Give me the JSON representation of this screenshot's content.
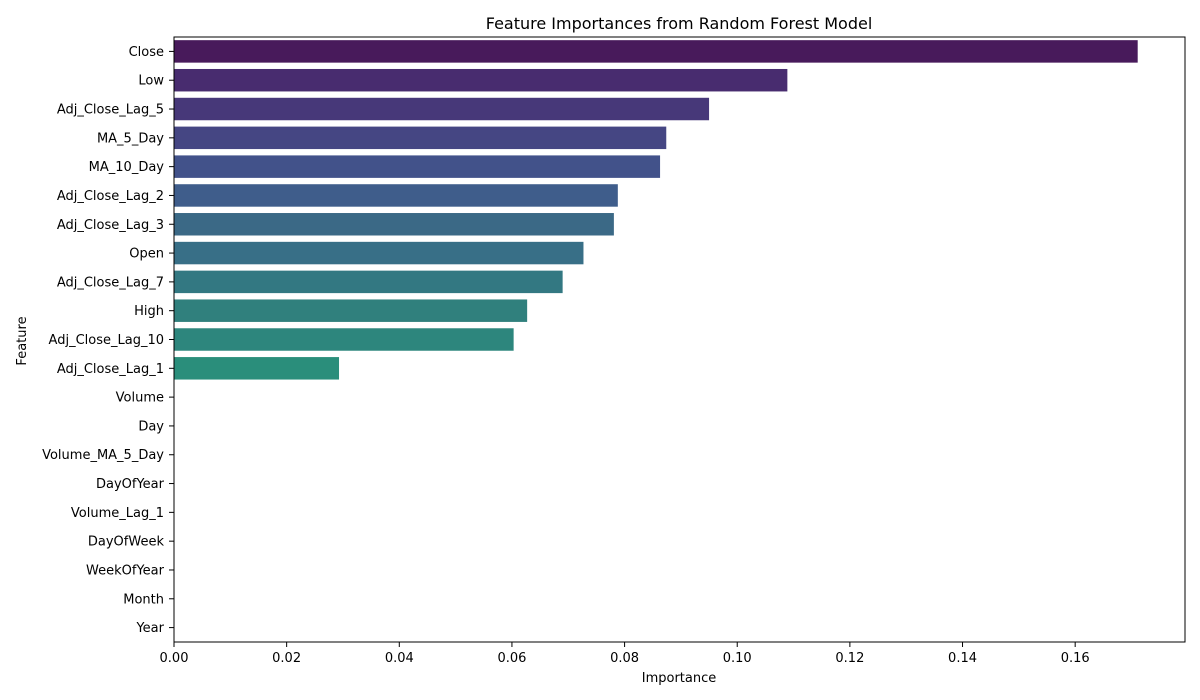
{
  "chart_data": {
    "type": "bar",
    "orientation": "horizontal",
    "title": "Feature Importances from Random Forest Model",
    "xlabel": "Importance",
    "ylabel": "Feature",
    "xlim": [
      0,
      0.1795
    ],
    "xticks": [
      0.0,
      0.02,
      0.04,
      0.06,
      0.08,
      0.1,
      0.12,
      0.14,
      0.16
    ],
    "xtick_labels": [
      "0.00",
      "0.02",
      "0.04",
      "0.06",
      "0.08",
      "0.10",
      "0.12",
      "0.14",
      "0.16"
    ],
    "grid": false,
    "palette": "viridis",
    "categories": [
      "Close",
      "Low",
      "Adj_Close_Lag_5",
      "MA_5_Day",
      "MA_10_Day",
      "Adj_Close_Lag_2",
      "Adj_Close_Lag_3",
      "Open",
      "Adj_Close_Lag_7",
      "High",
      "Adj_Close_Lag_10",
      "Adj_Close_Lag_1",
      "Volume",
      "Day",
      "Volume_MA_5_Day",
      "DayOfYear",
      "Volume_Lag_1",
      "DayOfWeek",
      "WeekOfYear",
      "Month",
      "Year"
    ],
    "values": [
      0.1711,
      0.1089,
      0.095,
      0.0874,
      0.0863,
      0.0788,
      0.0781,
      0.0727,
      0.069,
      0.0627,
      0.0603,
      0.0293,
      0.0,
      0.0,
      0.0,
      0.0,
      0.0,
      0.0,
      0.0,
      0.0,
      0.0
    ],
    "colors": [
      "#481a5b",
      "#482c6f",
      "#473879",
      "#454683",
      "#42528a",
      "#3f5d8b",
      "#3b6986",
      "#386f87",
      "#337882",
      "#30807d",
      "#2d867d",
      "#2a8e7b",
      "#26947a",
      "#24a079",
      "#28ad78",
      "#33bc74",
      "#45c96b",
      "#66d45c",
      "#8ddc4b",
      "#b5e23b",
      "#dee72f"
    ]
  }
}
